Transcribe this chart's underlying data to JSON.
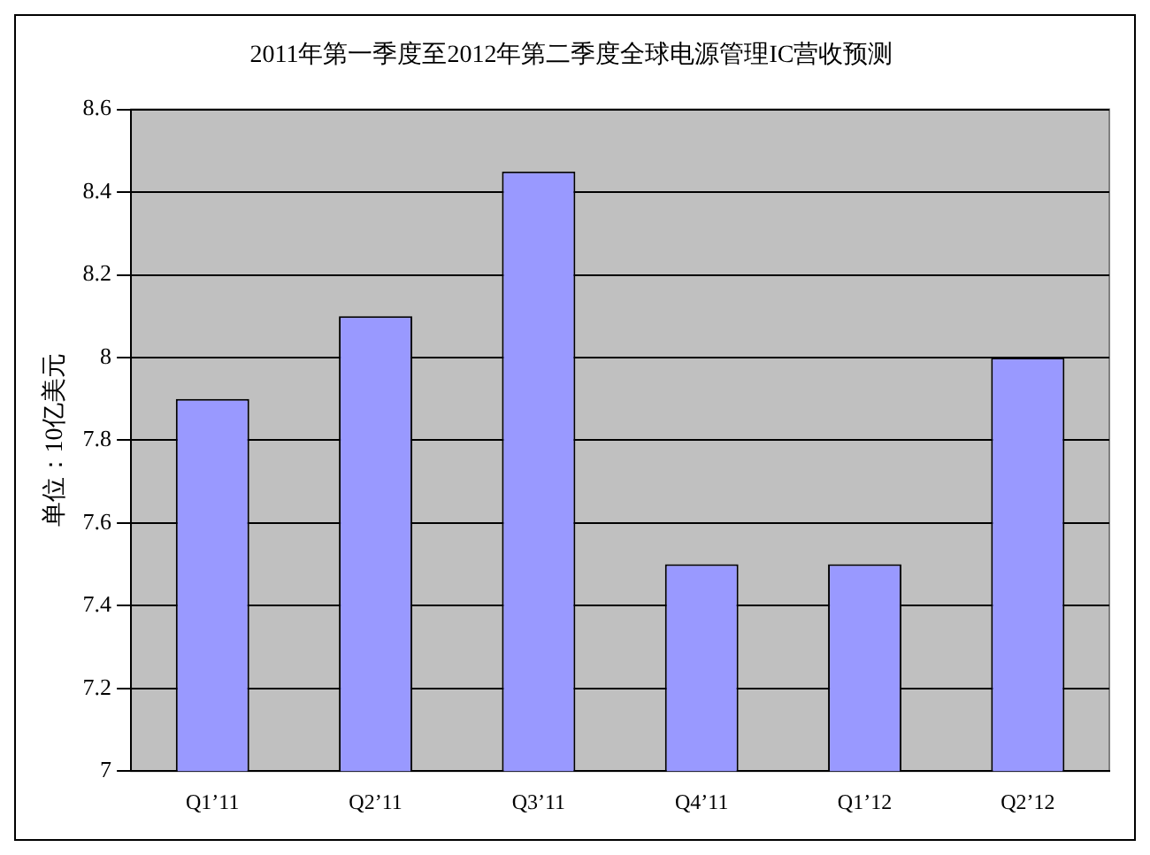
{
  "chart_data": {
    "type": "bar",
    "title": "2011年第一季度至2012年第二季度全球电源管理IC营收预测",
    "ylabel": "单位：10亿美元",
    "categories": [
      "Q1’11",
      "Q2’11",
      "Q3’11",
      "Q4’11",
      "Q1’12",
      "Q2’12"
    ],
    "values": [
      7.9,
      8.1,
      8.45,
      7.5,
      7.5,
      8.0
    ],
    "color": "#9999ff",
    "ylim": [
      7,
      8.6
    ],
    "yticks": [
      7,
      7.2,
      7.4,
      7.6,
      7.8,
      8,
      8.2,
      8.4,
      8.6
    ],
    "grid": "y",
    "legend": false
  }
}
